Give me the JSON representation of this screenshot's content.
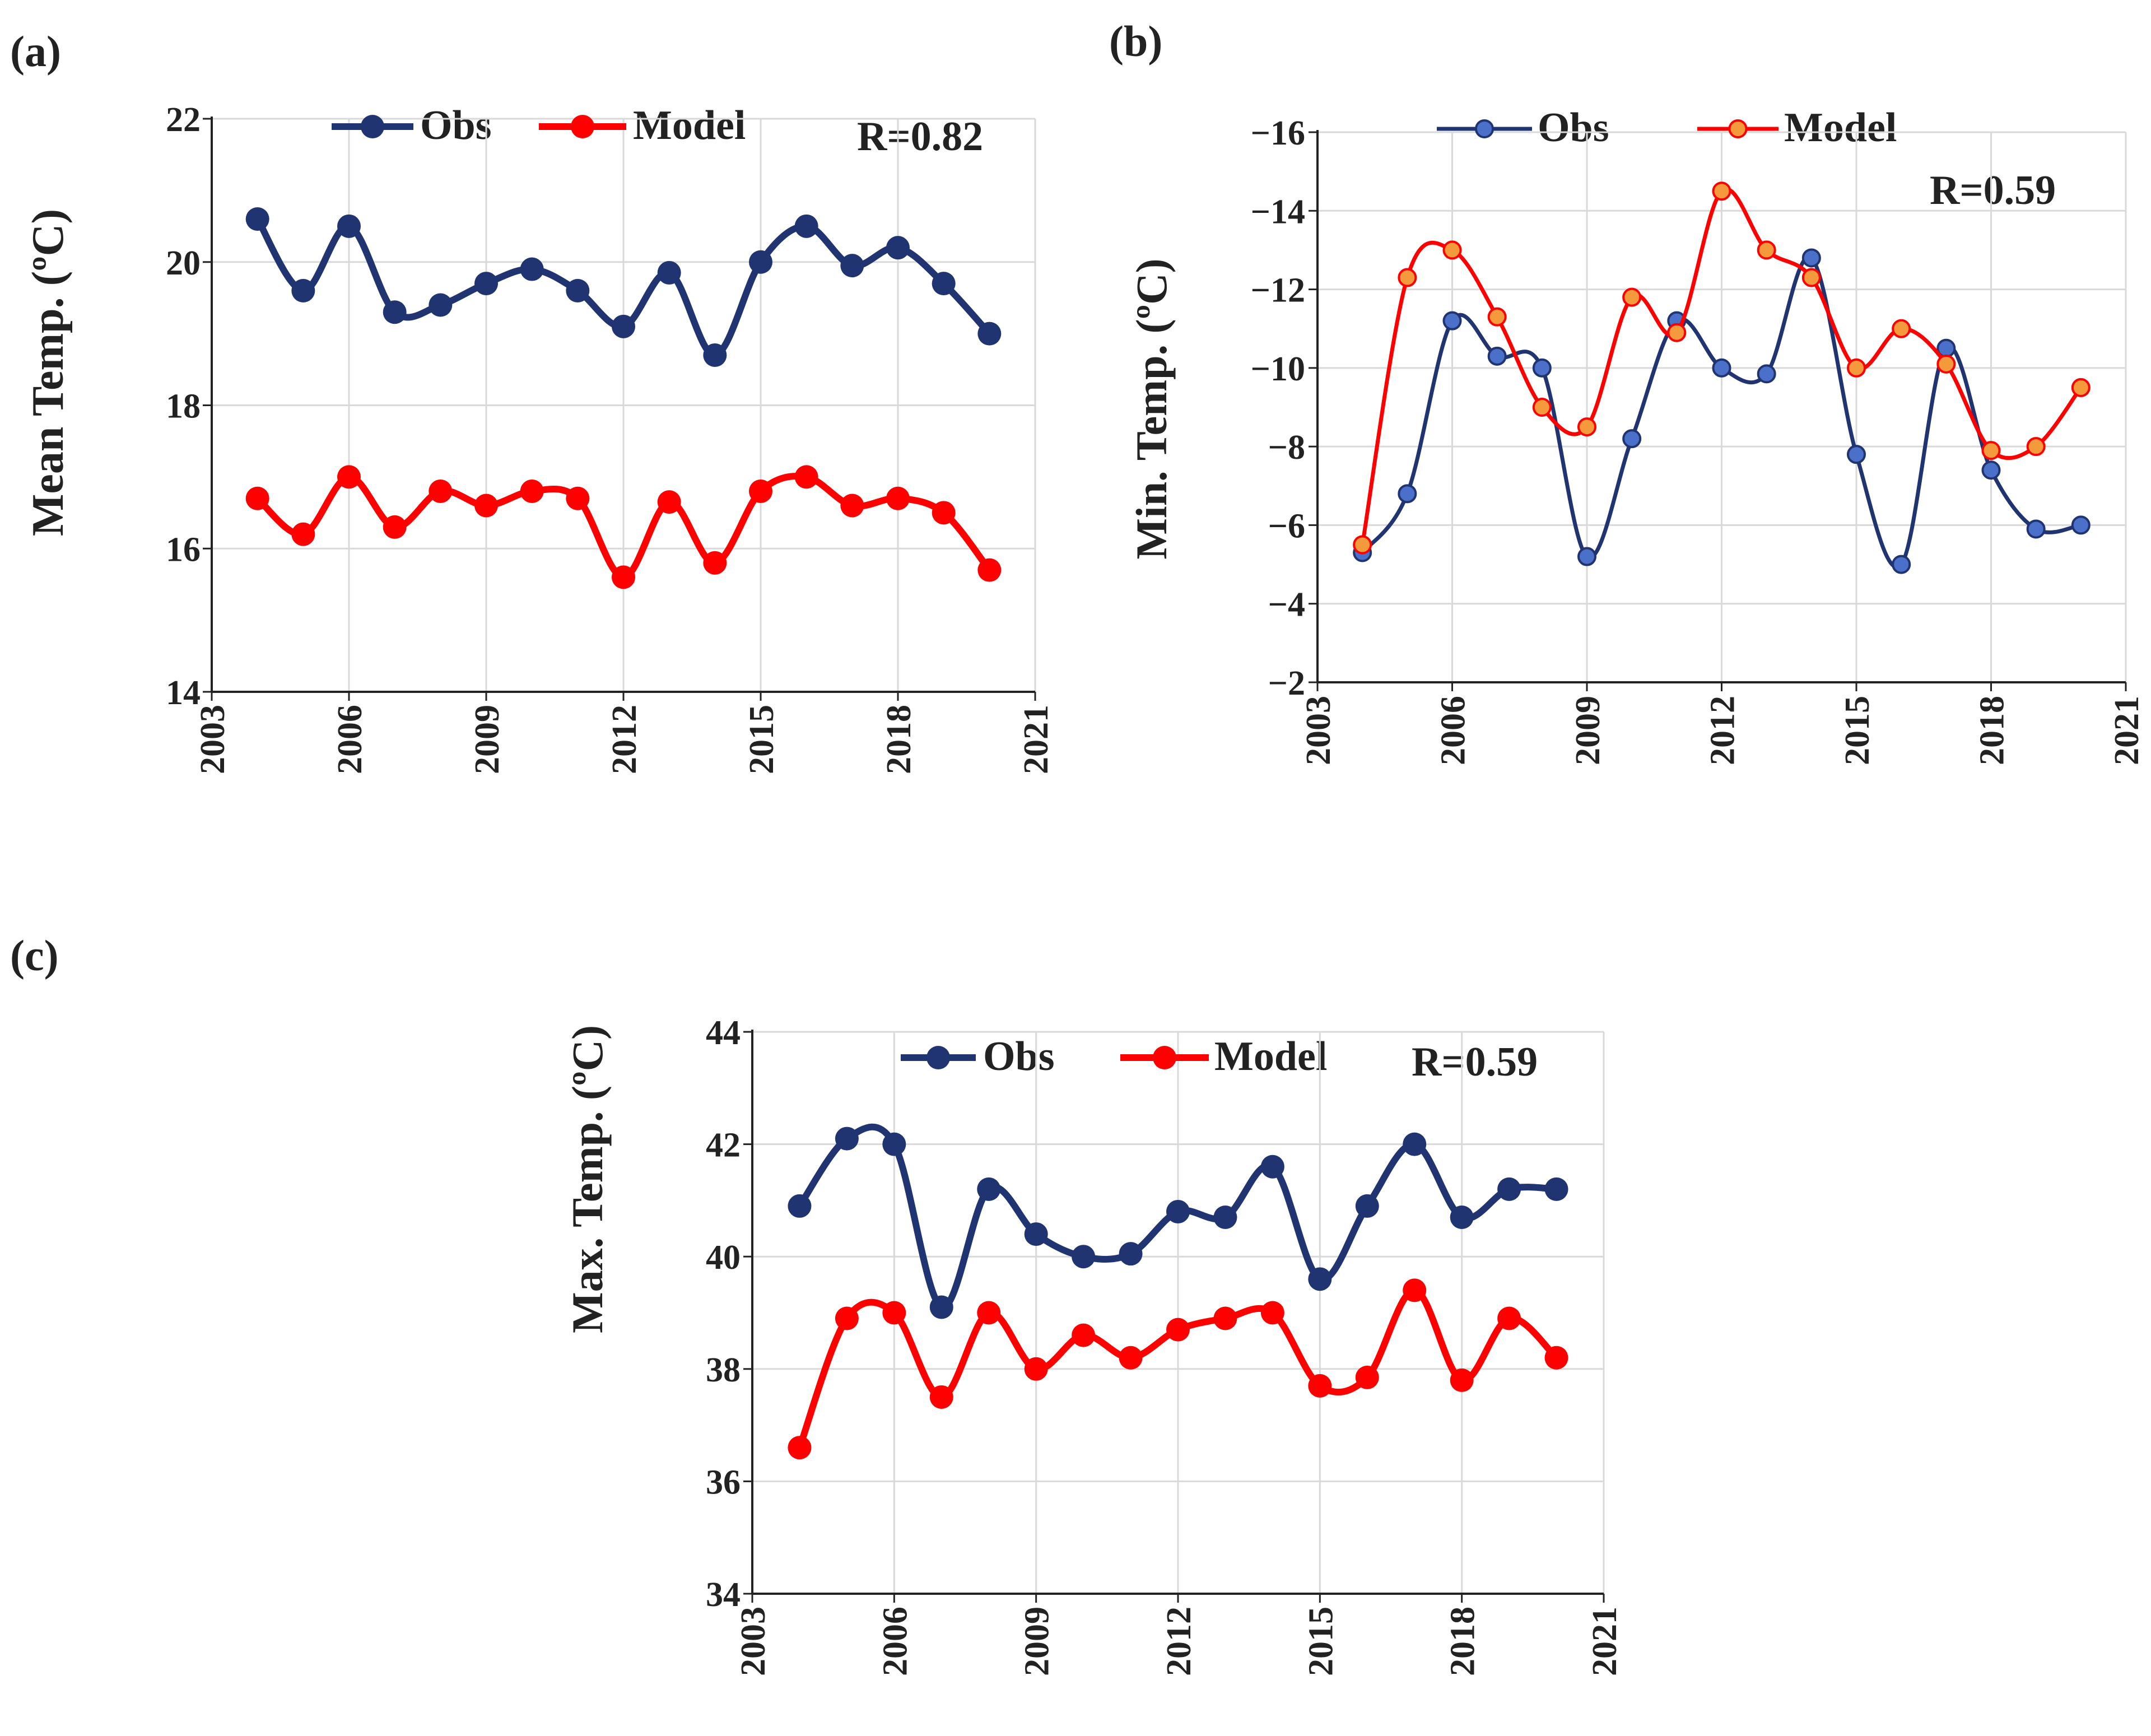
{
  "colors": {
    "obs": "#1f3470",
    "obs_fill_b": "#4a70c9",
    "model": "#ff0000",
    "model_fill_b": "#f59a3c",
    "grid": "#d9d9d9",
    "axis": "#222222"
  },
  "chart_data": [
    {
      "panel": "(a)",
      "type": "line",
      "ylabel": "Mean Temp. (ºC)",
      "ylim": [
        14,
        22
      ],
      "yticks": [
        "14",
        "16",
        "18",
        "20",
        "22"
      ],
      "xlim": [
        2003,
        2021
      ],
      "xticks": [
        "2003",
        "2006",
        "2009",
        "2012",
        "2015",
        "2018",
        "2021"
      ],
      "annotation": "R=0.82",
      "legend_position": "top",
      "x": [
        2004,
        2005,
        2006,
        2007,
        2008,
        2009,
        2010,
        2011,
        2012,
        2013,
        2014,
        2015,
        2016,
        2017,
        2018,
        2019,
        2020
      ],
      "series": [
        {
          "name": "Obs",
          "values": [
            20.6,
            19.6,
            20.5,
            19.3,
            19.4,
            19.7,
            19.9,
            19.6,
            19.1,
            19.85,
            18.7,
            20.0,
            20.5,
            19.95,
            20.2,
            19.7,
            19.0
          ]
        },
        {
          "name": "Model",
          "values": [
            16.7,
            16.2,
            17.0,
            16.3,
            16.8,
            16.6,
            16.8,
            16.7,
            15.6,
            16.65,
            15.8,
            16.8,
            17.0,
            16.6,
            16.7,
            16.5,
            15.7
          ]
        }
      ]
    },
    {
      "panel": "(b)",
      "type": "line",
      "ylabel": "Min. Temp. (ºC)",
      "ylim": [
        -2,
        -16
      ],
      "yticks": [
        "−2",
        "−4",
        "−6",
        "−8",
        "−10",
        "−12",
        "−14",
        "−16"
      ],
      "xlim": [
        2003,
        2021
      ],
      "xticks": [
        "2003",
        "2006",
        "2009",
        "2012",
        "2015",
        "2018",
        "2021"
      ],
      "annotation": "R=0.59",
      "legend_position": "top",
      "x": [
        2004,
        2005,
        2006,
        2007,
        2008,
        2009,
        2010,
        2011,
        2012,
        2013,
        2014,
        2015,
        2016,
        2017,
        2018,
        2019,
        2020
      ],
      "series": [
        {
          "name": "Obs",
          "values": [
            -5.3,
            -6.8,
            -11.2,
            -10.3,
            -10.0,
            -5.2,
            -8.2,
            -11.2,
            -10.0,
            -9.85,
            -12.8,
            -7.8,
            -5.0,
            -10.5,
            -7.4,
            -5.9,
            -6.0
          ]
        },
        {
          "name": "Model",
          "values": [
            -5.5,
            -12.3,
            -13.0,
            -11.3,
            -9.0,
            -8.5,
            -11.8,
            -10.9,
            -14.5,
            -13.0,
            -12.3,
            -10.0,
            -11.0,
            -10.1,
            -7.9,
            -8.0,
            -9.5
          ]
        }
      ]
    },
    {
      "panel": "(c)",
      "type": "line",
      "ylabel": "Max. Temp. (ºC)",
      "ylim": [
        34,
        44
      ],
      "yticks": [
        "34",
        "36",
        "38",
        "40",
        "42",
        "44"
      ],
      "xlim": [
        2003,
        2021
      ],
      "xticks": [
        "2003",
        "2006",
        "2009",
        "2012",
        "2015",
        "2018",
        "2021"
      ],
      "annotation": "R=0.59",
      "legend_position": "top",
      "x": [
        2004,
        2005,
        2006,
        2007,
        2008,
        2009,
        2010,
        2011,
        2012,
        2013,
        2014,
        2015,
        2016,
        2017,
        2018,
        2019,
        2020
      ],
      "series": [
        {
          "name": "Obs",
          "values": [
            40.9,
            42.1,
            42.0,
            39.1,
            41.2,
            40.4,
            40.0,
            40.05,
            40.8,
            40.7,
            41.6,
            39.6,
            40.9,
            42.0,
            40.7,
            41.2,
            41.2
          ]
        },
        {
          "name": "Model",
          "values": [
            36.6,
            38.9,
            39.0,
            37.5,
            39.0,
            38.0,
            38.6,
            38.2,
            38.7,
            38.9,
            39.0,
            37.7,
            37.85,
            39.4,
            37.8,
            38.9,
            38.2
          ]
        }
      ]
    }
  ]
}
